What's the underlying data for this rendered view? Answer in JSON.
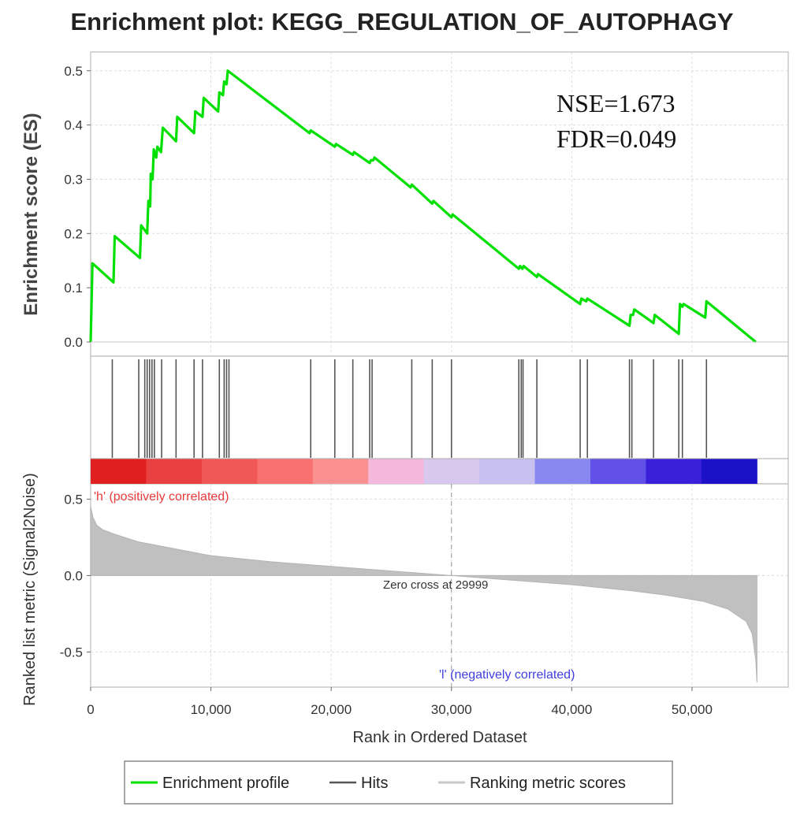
{
  "chart_data": {
    "type": "line",
    "title": "Enrichment plot: KEGG_REGULATION_OF_AUTOPHAGY",
    "annotations": {
      "nse": "NSE=1.673",
      "fdr": "FDR=0.049"
    },
    "enrichment_panel": {
      "ylabel": "Enrichment score (ES)",
      "ylim": [
        0,
        0.52
      ],
      "yticks": [
        0.0,
        0.1,
        0.2,
        0.3,
        0.4,
        0.5
      ],
      "ytick_labels": [
        "0.0",
        "0.1",
        "0.2",
        "0.3",
        "0.4",
        "0.5"
      ],
      "series": [
        {
          "name": "Enrichment profile",
          "color": "#00e000",
          "x": [
            0,
            150,
            1900,
            2000,
            4100,
            4200,
            4700,
            4800,
            4950,
            5000,
            5150,
            5250,
            5450,
            5550,
            5850,
            6000,
            7100,
            7200,
            8600,
            8700,
            9300,
            9400,
            10600,
            10700,
            11000,
            11100,
            11300,
            11400,
            18200,
            18300,
            20300,
            20400,
            21800,
            21900,
            23200,
            23300,
            23500,
            23600,
            26600,
            26700,
            28400,
            28500,
            30000,
            30100,
            35600,
            35700,
            35900,
            36000,
            37100,
            37200,
            40700,
            40800,
            41200,
            41300,
            44800,
            44900,
            45100,
            45200,
            46800,
            46900,
            48900,
            49000,
            49200,
            49300,
            51100,
            51200,
            55300
          ],
          "y": [
            0.0,
            0.145,
            0.11,
            0.195,
            0.155,
            0.215,
            0.2,
            0.26,
            0.25,
            0.31,
            0.3,
            0.355,
            0.34,
            0.36,
            0.35,
            0.395,
            0.37,
            0.415,
            0.385,
            0.425,
            0.415,
            0.45,
            0.425,
            0.46,
            0.455,
            0.48,
            0.475,
            0.5,
            0.385,
            0.39,
            0.36,
            0.365,
            0.345,
            0.35,
            0.33,
            0.335,
            0.335,
            0.34,
            0.285,
            0.29,
            0.255,
            0.26,
            0.23,
            0.235,
            0.135,
            0.14,
            0.135,
            0.14,
            0.12,
            0.125,
            0.07,
            0.08,
            0.075,
            0.08,
            0.03,
            0.05,
            0.05,
            0.06,
            0.035,
            0.05,
            0.015,
            0.07,
            0.065,
            0.07,
            0.045,
            0.075,
            0.0
          ]
        }
      ]
    },
    "hits_panel": {
      "hit_positions": [
        1800,
        4000,
        4500,
        4700,
        4900,
        5100,
        5300,
        5900,
        7100,
        8600,
        9300,
        10700,
        11100,
        11300,
        11500,
        18300,
        20300,
        21800,
        23200,
        23400,
        26700,
        28400,
        30000,
        35600,
        35800,
        35950,
        37100,
        40700,
        41300,
        44800,
        45000,
        46800,
        48900,
        49200,
        51200
      ],
      "color_band_colors": [
        "#e02020",
        "#e84040",
        "#f05858",
        "#f87070",
        "#fa9090",
        "#f4b8dc",
        "#d8c8f0",
        "#c8c0f0",
        "#8888f0",
        "#6050e8",
        "#3a20d8",
        "#1c10c8"
      ],
      "positive_label": "'h' (positively correlated)",
      "negative_label": "'l' (negatively correlated)",
      "positive_color": "#e83a3a",
      "negative_color": "#4040e0"
    },
    "metric_panel": {
      "ylabel": "Ranked list metric (Signal2Noise)",
      "ylim": [
        -0.73,
        0.6
      ],
      "yticks": [
        -0.5,
        0.0,
        0.5
      ],
      "ytick_labels": [
        "-0.5",
        "0.0",
        "0.5"
      ],
      "zero_cross_label": "Zero cross at 29999",
      "zero_cross": 29999,
      "curve_x": [
        0,
        200,
        500,
        1000,
        2000,
        4000,
        6000,
        10000,
        15000,
        20000,
        25000,
        29999,
        35000,
        40000,
        45000,
        48000,
        51000,
        53000,
        54500,
        55000,
        55300,
        55400
      ],
      "curve_y": [
        0.45,
        0.38,
        0.33,
        0.3,
        0.27,
        0.22,
        0.19,
        0.13,
        0.09,
        0.06,
        0.03,
        0.0,
        -0.03,
        -0.06,
        -0.1,
        -0.13,
        -0.17,
        -0.22,
        -0.3,
        -0.38,
        -0.55,
        -0.7
      ],
      "fill_color": "#c0c0c0"
    },
    "x_axis": {
      "xlabel": "Rank in Ordered Dataset",
      "xlim": [
        0,
        58000
      ],
      "xticks": [
        0,
        10000,
        20000,
        30000,
        40000,
        50000
      ],
      "xtick_labels": [
        "0",
        "10,000",
        "20,000",
        "30,000",
        "40,000",
        "50,000"
      ],
      "data_max": 55400
    },
    "legend": {
      "placement": "bottom-center",
      "entries": [
        {
          "label": "Enrichment profile",
          "color": "#00e000"
        },
        {
          "label": "Hits",
          "color": "#555555"
        },
        {
          "label": "Ranking metric scores",
          "color": "#c8c8c8"
        }
      ]
    },
    "grid": true
  }
}
